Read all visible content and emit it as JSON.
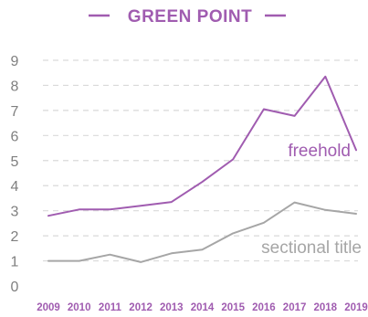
{
  "chart_data": {
    "type": "line",
    "title": "GREEN POINT",
    "xlabel": "",
    "ylabel": "",
    "x": [
      "2009",
      "2010",
      "2011",
      "2012",
      "2013",
      "2014",
      "2015",
      "2016",
      "2017",
      "2018",
      "2019"
    ],
    "ylim": [
      0,
      9
    ],
    "yticks": [
      0,
      1,
      2,
      3,
      4,
      5,
      6,
      7,
      8,
      9
    ],
    "grid": true,
    "legend": "inline labels",
    "series": [
      {
        "name": "freehold",
        "color": "#a05cb0",
        "values": [
          2.8,
          3.05,
          3.05,
          3.2,
          3.35,
          4.15,
          5.05,
          7.05,
          6.78,
          8.35,
          5.42
        ]
      },
      {
        "name": "sectional title",
        "color": "#a6a6a6",
        "values": [
          1.0,
          1.0,
          1.25,
          0.95,
          1.3,
          1.45,
          2.1,
          2.52,
          3.33,
          3.03,
          2.88
        ]
      }
    ],
    "colors": {
      "title": "#a05cb0",
      "axis_text": "#7f7f7f",
      "x_tick_text": "#a05cb0",
      "grid": "#d9d9d9"
    }
  }
}
